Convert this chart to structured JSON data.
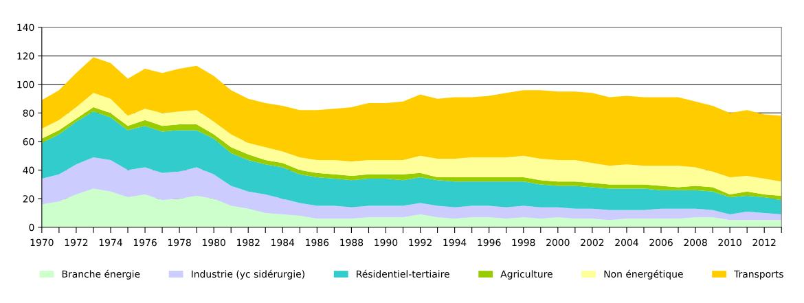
{
  "chart_data": {
    "type": "area",
    "stacked": true,
    "x": [
      1970,
      1971,
      1972,
      1973,
      1974,
      1975,
      1976,
      1977,
      1978,
      1979,
      1980,
      1981,
      1982,
      1983,
      1984,
      1985,
      1986,
      1987,
      1988,
      1989,
      1990,
      1991,
      1992,
      1993,
      1994,
      1995,
      1996,
      1997,
      1998,
      1999,
      2000,
      2001,
      2002,
      2003,
      2004,
      2005,
      2006,
      2007,
      2008,
      2009,
      2010,
      2011,
      2012,
      2013
    ],
    "series": [
      {
        "name": "Branche énergie",
        "color": "#ccffcc",
        "values": [
          16,
          18,
          23,
          27,
          25,
          21,
          23,
          19,
          20,
          22,
          20,
          15,
          13,
          10,
          9,
          8,
          6,
          6,
          6,
          7,
          7,
          7,
          9,
          7,
          6,
          7,
          7,
          6,
          7,
          6,
          7,
          6,
          6,
          5,
          6,
          6,
          6,
          6,
          7,
          7,
          5,
          5,
          5,
          5
        ]
      },
      {
        "name": "Industrie (yc sidérurgie)",
        "color": "#ccccff",
        "values": [
          18,
          19,
          21,
          22,
          22,
          19,
          19,
          19,
          19,
          20,
          17,
          14,
          12,
          13,
          11,
          9,
          9,
          9,
          8,
          8,
          8,
          8,
          8,
          8,
          8,
          8,
          8,
          8,
          8,
          8,
          7,
          7,
          7,
          7,
          6,
          6,
          7,
          7,
          6,
          5,
          4,
          6,
          5,
          4
        ]
      },
      {
        "name": "Résidentiel-tertiaire",
        "color": "#33cccc",
        "values": [
          25,
          28,
          30,
          32,
          30,
          28,
          29,
          29,
          29,
          26,
          25,
          23,
          22,
          21,
          22,
          20,
          20,
          19,
          19,
          19,
          19,
          18,
          18,
          18,
          18,
          17,
          17,
          18,
          17,
          16,
          15,
          16,
          15,
          15,
          15,
          15,
          13,
          13,
          13,
          13,
          12,
          11,
          11,
          10
        ]
      },
      {
        "name": "Agriculture",
        "color": "#99cc00",
        "values": [
          3,
          3,
          2,
          3,
          3,
          3,
          4,
          4,
          4,
          4,
          3,
          4,
          4,
          3,
          3,
          3,
          3,
          3,
          3,
          3,
          3,
          4,
          3,
          2,
          3,
          3,
          3,
          3,
          3,
          3,
          3,
          3,
          3,
          3,
          3,
          3,
          3,
          2,
          3,
          3,
          2,
          3,
          2,
          3
        ]
      },
      {
        "name": "Non énergétique",
        "color": "#ffff99",
        "values": [
          7,
          7,
          8,
          10,
          10,
          7,
          8,
          9,
          9,
          10,
          9,
          9,
          8,
          9,
          8,
          9,
          9,
          10,
          10,
          10,
          10,
          10,
          12,
          13,
          13,
          14,
          14,
          14,
          15,
          15,
          15,
          15,
          14,
          13,
          14,
          13,
          14,
          15,
          13,
          11,
          12,
          11,
          11,
          10
        ]
      },
      {
        "name": "Transports",
        "color": "#ffcc00",
        "values": [
          20,
          21,
          24,
          25,
          25,
          26,
          28,
          28,
          30,
          31,
          32,
          31,
          31,
          31,
          32,
          33,
          35,
          36,
          38,
          40,
          40,
          41,
          43,
          42,
          43,
          42,
          43,
          45,
          46,
          48,
          48,
          48,
          49,
          48,
          48,
          48,
          48,
          48,
          46,
          46,
          45,
          46,
          45,
          46
        ]
      }
    ],
    "xlim": [
      1970,
      2013
    ],
    "xticks": [
      1970,
      {
        "value": 1971,
        "label": null
      },
      1972,
      {
        "value": 1973,
        "label": null
      },
      1974,
      {
        "value": 1975,
        "label": null
      },
      1976,
      {
        "value": 1977,
        "label": null
      },
      1978,
      {
        "value": 1979,
        "label": null
      },
      1980,
      {
        "value": 1981,
        "label": null
      },
      1982,
      {
        "value": 1983,
        "label": null
      },
      1984,
      {
        "value": 1985,
        "label": null
      },
      1986,
      {
        "value": 1987,
        "label": null
      },
      1988,
      {
        "value": 1989,
        "label": null
      },
      1990,
      {
        "value": 1991,
        "label": null
      },
      1992,
      {
        "value": 1993,
        "label": null
      },
      1994,
      {
        "value": 1995,
        "label": null
      },
      1996,
      {
        "value": 1997,
        "label": null
      },
      1998,
      {
        "value": 1999,
        "label": null
      },
      2000,
      {
        "value": 2001,
        "label": null
      },
      2002,
      {
        "value": 2003,
        "label": null
      },
      2004,
      {
        "value": 2005,
        "label": null
      },
      2006,
      {
        "value": 2007,
        "label": null
      },
      2008,
      {
        "value": 2009,
        "label": null
      },
      2010,
      {
        "value": 2011,
        "label": null
      },
      2012,
      {
        "value": 2013,
        "label": null
      }
    ],
    "ylim": [
      0,
      140
    ],
    "yticks": [
      0,
      20,
      40,
      60,
      80,
      100,
      120,
      140
    ],
    "grid": "y",
    "legend": "bottom"
  }
}
